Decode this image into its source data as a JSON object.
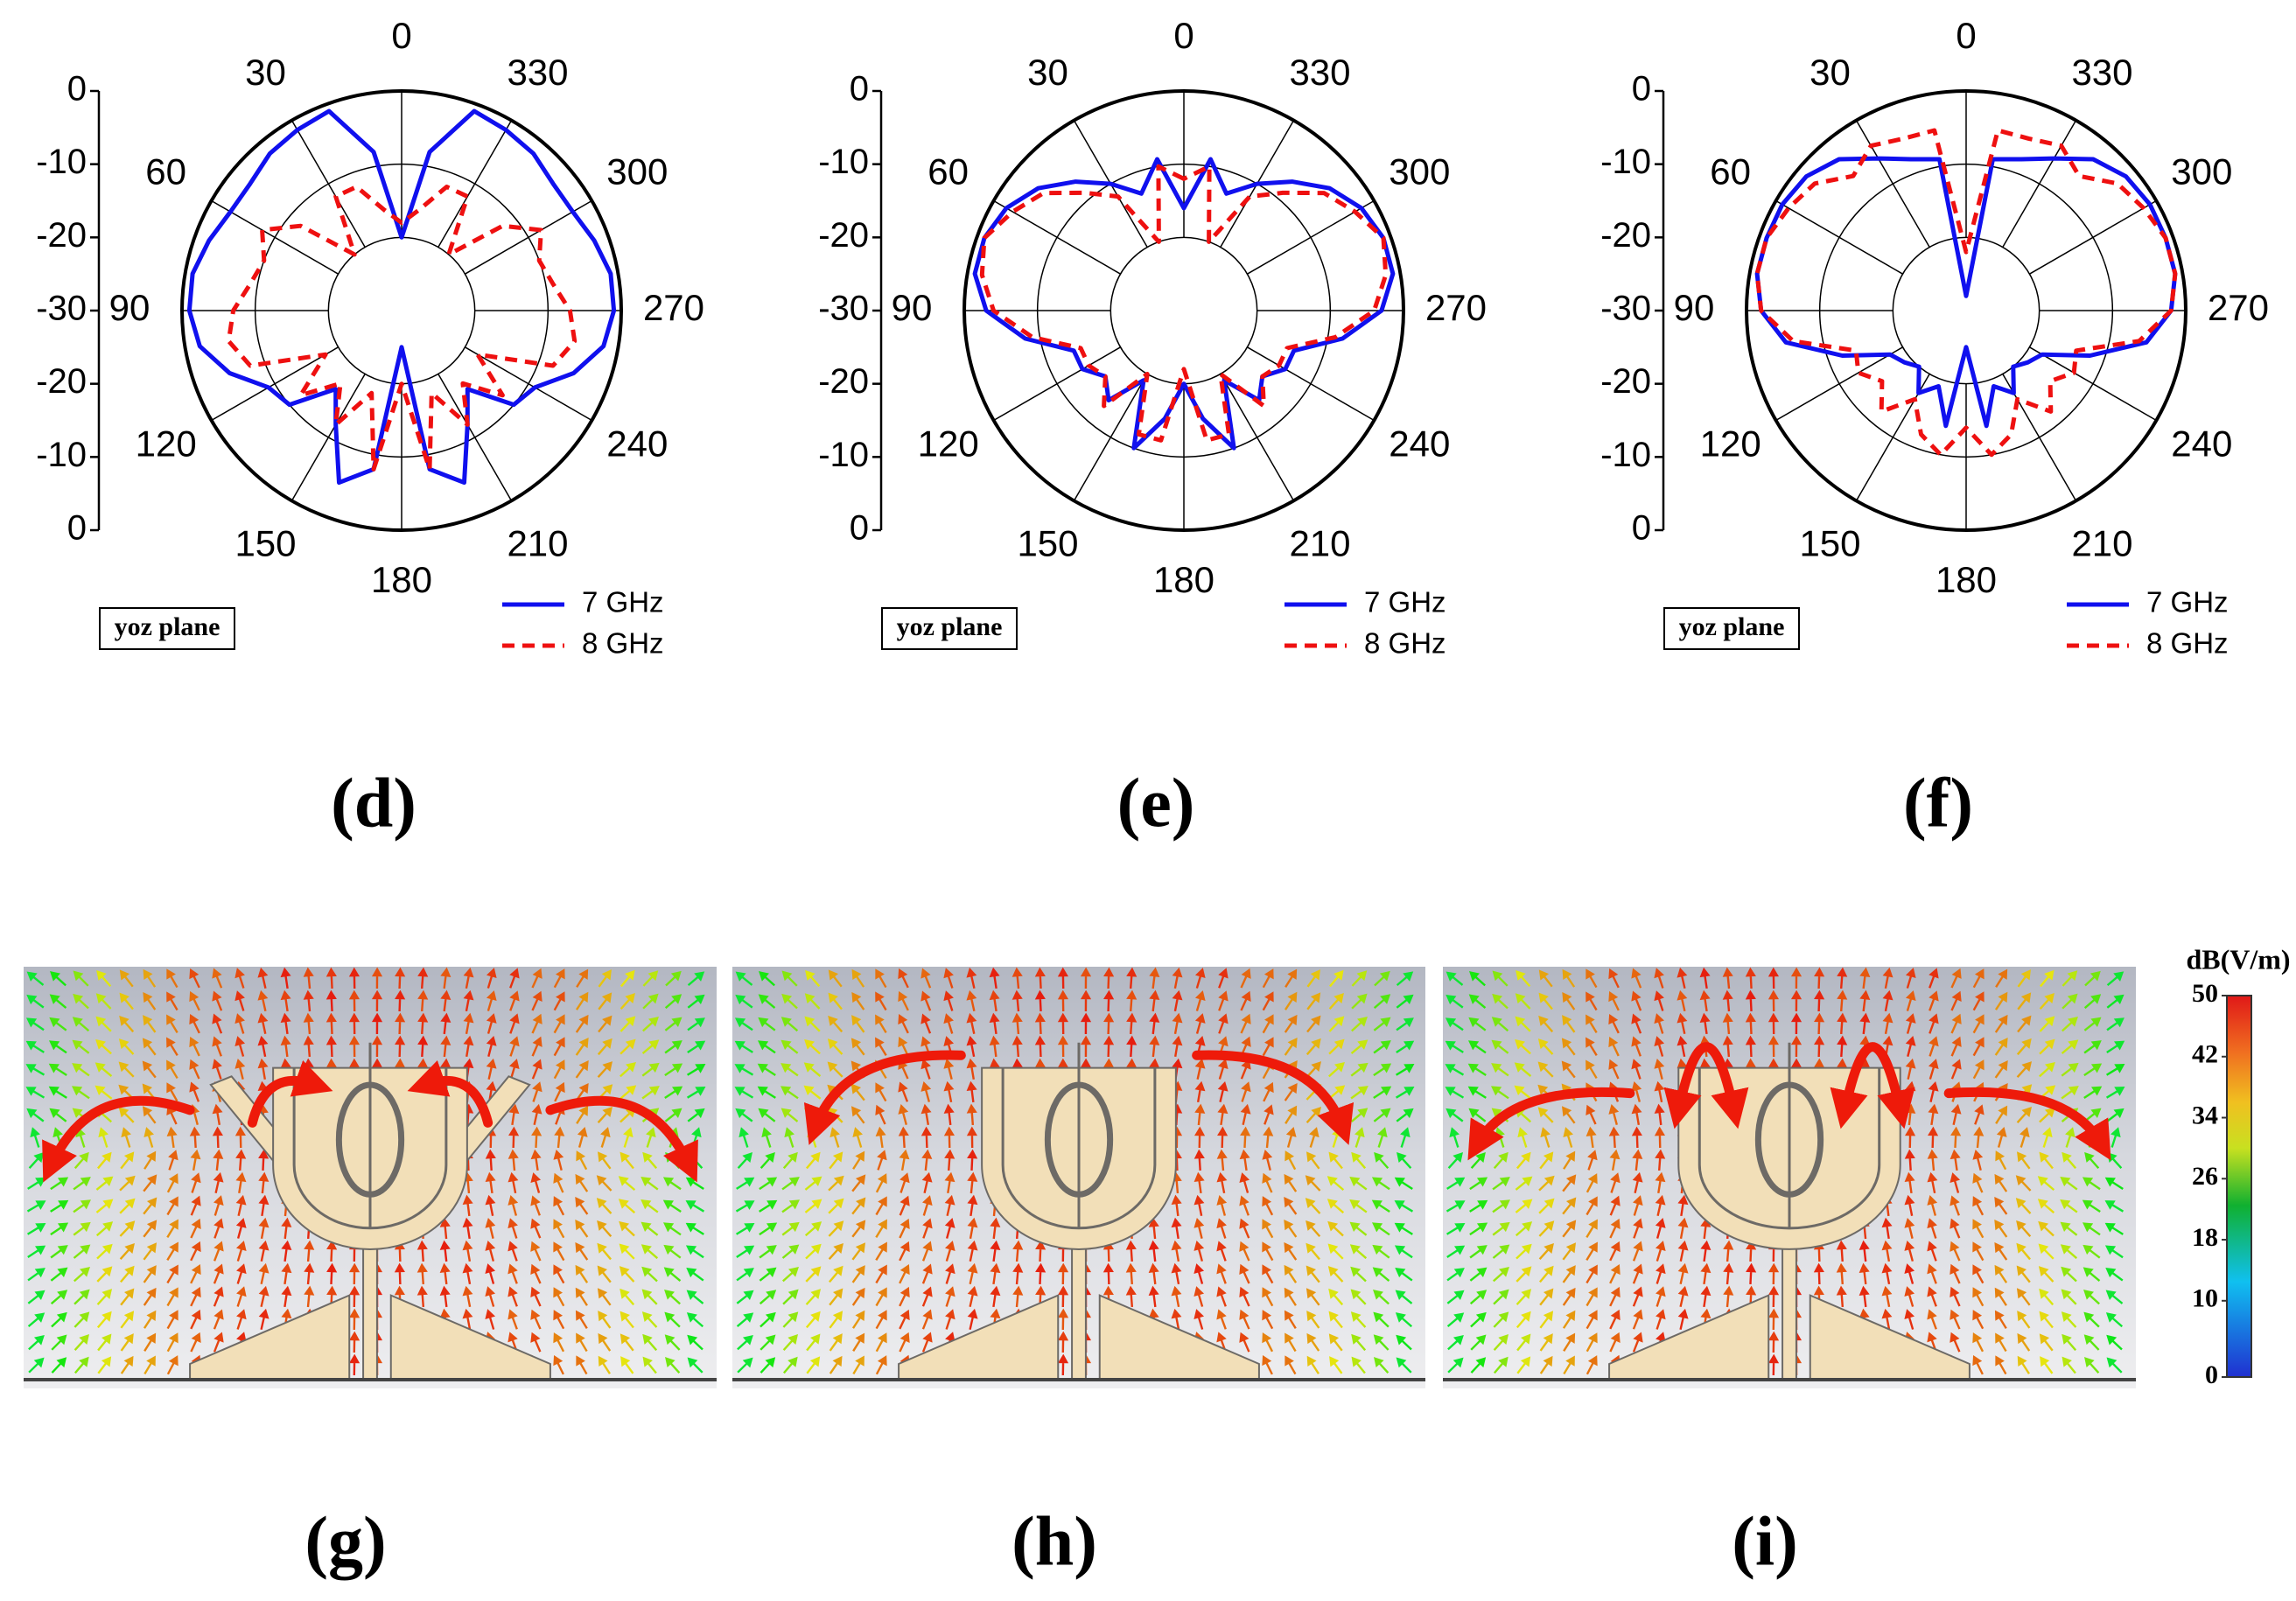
{
  "chart_data": [
    {
      "type": "polar",
      "label": "(d)",
      "annotation": "yoz plane",
      "theta": [
        0,
        10,
        20,
        30,
        40,
        50,
        60,
        70,
        80,
        90,
        100,
        110,
        120,
        130,
        140,
        150,
        160,
        170,
        180,
        190,
        200,
        210,
        220,
        230,
        240,
        250,
        260,
        270,
        280,
        290,
        300,
        310,
        320,
        330,
        340,
        350
      ],
      "thetaticks": [
        0,
        30,
        60,
        90,
        120,
        150,
        180,
        210,
        240,
        270,
        300,
        330
      ],
      "rlim": [
        -30,
        0
      ],
      "rticks": [
        0,
        -10,
        -20,
        -30
      ],
      "series": [
        {
          "name": "7 GHz",
          "color": "#1010ee",
          "linestyle": "solid",
          "values": [
            -20,
            -8,
            -1,
            -1.5,
            -2,
            -3,
            -3,
            -2,
            -1,
            -1,
            -2,
            -5,
            -9,
            -10,
            -16,
            -12,
            -5,
            -8,
            -25,
            -8,
            -5,
            -12,
            -16,
            -10,
            -9,
            -5,
            -2,
            -1,
            -1,
            -2,
            -3,
            -3,
            -2,
            -1.5,
            -1,
            -8
          ]
        },
        {
          "name": "8 GHz",
          "color": "#ee1010",
          "linestyle": "dashed",
          "values": [
            -18,
            -16,
            -12,
            -12,
            -20,
            -12,
            -8,
            -10,
            -9,
            -7,
            -6,
            -8,
            -18,
            -12,
            -17,
            -12,
            -18,
            -8,
            -20,
            -8,
            -18,
            -12,
            -17,
            -12,
            -18,
            -8,
            -6,
            -7,
            -9,
            -10,
            -8,
            -12,
            -20,
            -12,
            -12,
            -16
          ]
        }
      ]
    },
    {
      "type": "polar",
      "label": "(e)",
      "annotation": "yoz plane",
      "theta": [
        0,
        10,
        20,
        30,
        40,
        50,
        60,
        70,
        80,
        90,
        100,
        110,
        120,
        130,
        140,
        150,
        160,
        170,
        180,
        190,
        200,
        210,
        220,
        230,
        240,
        250,
        260,
        270,
        280,
        290,
        300,
        310,
        320,
        330,
        340,
        350
      ],
      "thetaticks": [
        0,
        30,
        60,
        90,
        120,
        150,
        180,
        210,
        240,
        270,
        300,
        330
      ],
      "rlim": [
        -30,
        0
      ],
      "rticks": [
        0,
        -10,
        -20,
        -30
      ],
      "series": [
        {
          "name": "7 GHz",
          "color": "#1010ee",
          "linestyle": "solid",
          "values": [
            -16,
            -9,
            -13,
            -10,
            -7,
            -4,
            -2,
            -1,
            -1,
            -3,
            -8,
            -14,
            -14,
            -16,
            -14,
            -19,
            -10,
            -15,
            -20,
            -15,
            -10,
            -19,
            -14,
            -16,
            -14,
            -14,
            -8,
            -3,
            -1,
            -1,
            -2,
            -4,
            -7,
            -10,
            -13,
            -9
          ]
        },
        {
          "name": "8 GHz",
          "color": "#ee1010",
          "linestyle": "dashed",
          "values": [
            -12,
            -10,
            -20,
            -12,
            -9,
            -5,
            -3,
            -1,
            -2,
            -4,
            -9,
            -15,
            -15,
            -16,
            -13,
            -20,
            -12,
            -12,
            -22,
            -12,
            -12,
            -20,
            -13,
            -16,
            -15,
            -15,
            -9,
            -4,
            -2,
            -1,
            -3,
            -5,
            -9,
            -12,
            -20,
            -10
          ]
        }
      ]
    },
    {
      "type": "polar",
      "label": "(f)",
      "annotation": "yoz plane",
      "theta": [
        0,
        10,
        20,
        30,
        40,
        50,
        60,
        70,
        80,
        90,
        100,
        110,
        120,
        130,
        140,
        150,
        160,
        170,
        180,
        190,
        200,
        210,
        220,
        230,
        240,
        250,
        260,
        270,
        280,
        290,
        300,
        310,
        320,
        330,
        340,
        350
      ],
      "thetaticks": [
        0,
        30,
        60,
        90,
        120,
        150,
        180,
        210,
        240,
        270,
        300,
        330
      ],
      "rlim": [
        -30,
        0
      ],
      "rticks": [
        0,
        -10,
        -20,
        -30
      ],
      "series": [
        {
          "name": "7 GHz",
          "color": "#1010ee",
          "linestyle": "solid",
          "values": [
            -28,
            -9,
            -8,
            -6,
            -3,
            -1.5,
            -1,
            -1,
            -1,
            -2,
            -5,
            -12,
            -18,
            -19,
            -20,
            -17,
            -19,
            -14,
            -25,
            -14,
            -19,
            -17,
            -20,
            -19,
            -18,
            -12,
            -5,
            -2,
            -1,
            -1,
            -1,
            -1.5,
            -3,
            -6,
            -8,
            -9
          ]
        },
        {
          "name": "8 GHz",
          "color": "#ee1010",
          "linestyle": "dashed",
          "values": [
            -22,
            -5,
            -5,
            -4,
            -6,
            -3,
            -2,
            -1,
            -1,
            -2,
            -6,
            -14,
            -13,
            -15,
            -12,
            -16,
            -12,
            -10,
            -14,
            -10,
            -12,
            -16,
            -12,
            -15,
            -13,
            -14,
            -6,
            -2,
            -1,
            -1,
            -2,
            -3,
            -6,
            -4,
            -5,
            -5
          ]
        }
      ]
    }
  ],
  "field_plots": [
    {
      "label": "(g)"
    },
    {
      "label": "(h)"
    },
    {
      "label": "(i)"
    }
  ],
  "colorbar": {
    "title": "dB(V/m)",
    "lim": [
      0,
      50
    ],
    "ticks": [
      0,
      10,
      18,
      26,
      34,
      42,
      50
    ]
  }
}
